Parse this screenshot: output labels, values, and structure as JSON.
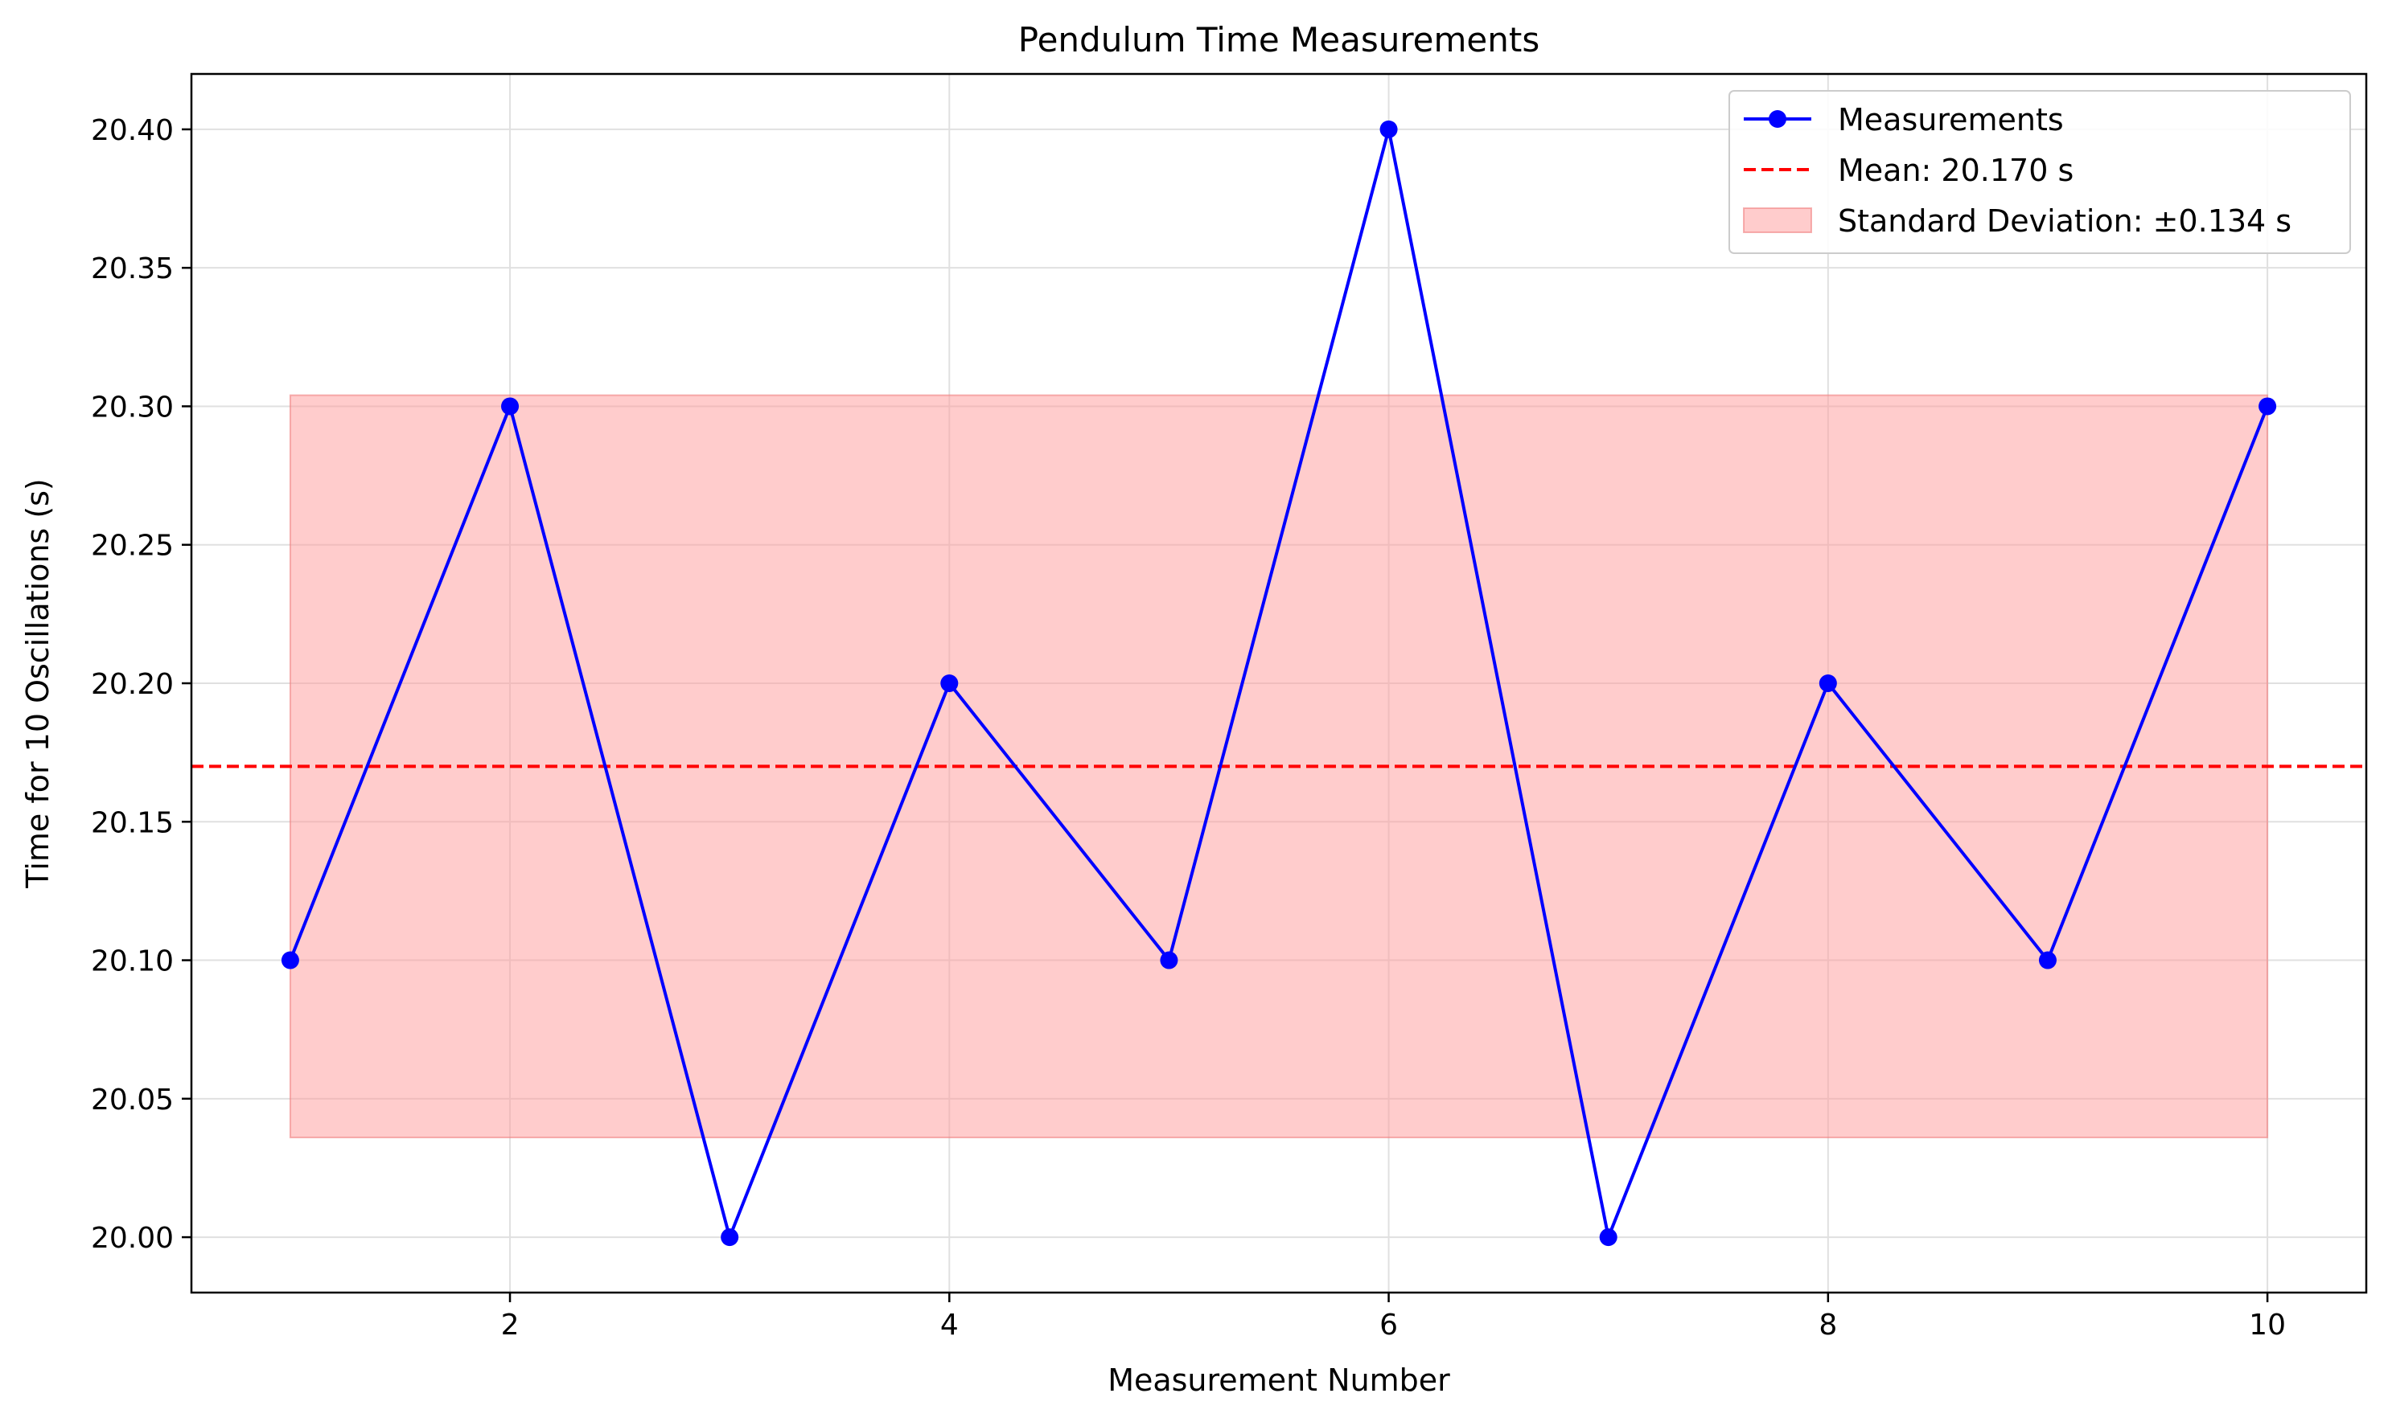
{
  "chart_data": {
    "type": "line",
    "title": "Pendulum Time Measurements",
    "xlabel": "Measurement Number",
    "ylabel": "Time for 10 Oscillations (s)",
    "xlim": [
      0.55,
      10.45
    ],
    "ylim": [
      19.98,
      20.42
    ],
    "xticks": [
      2,
      4,
      6,
      8,
      10
    ],
    "xtick_labels": [
      "2",
      "4",
      "6",
      "8",
      "10"
    ],
    "yticks": [
      20.0,
      20.05,
      20.1,
      20.15,
      20.2,
      20.25,
      20.3,
      20.35,
      20.4
    ],
    "ytick_labels": [
      "20.00",
      "20.05",
      "20.10",
      "20.15",
      "20.20",
      "20.25",
      "20.30",
      "20.35",
      "20.40"
    ],
    "grid": true,
    "legend_position": "top-right",
    "series": [
      {
        "name": "Measurements",
        "x": [
          1,
          2,
          3,
          4,
          5,
          6,
          7,
          8,
          9,
          10
        ],
        "values": [
          20.1,
          20.3,
          20.0,
          20.2,
          20.1,
          20.4,
          20.0,
          20.2,
          20.1,
          20.3
        ],
        "color": "#0000ff",
        "marker": "circle"
      }
    ],
    "mean": {
      "label": "Mean: 20.170 s",
      "value": 20.17,
      "color": "#ff0000",
      "style": "dashed"
    },
    "std_band": {
      "label": "Standard Deviation: ±0.134 s",
      "lower": 20.036,
      "upper": 20.304,
      "x_range": [
        1,
        10
      ],
      "color": "#ff9999"
    }
  }
}
